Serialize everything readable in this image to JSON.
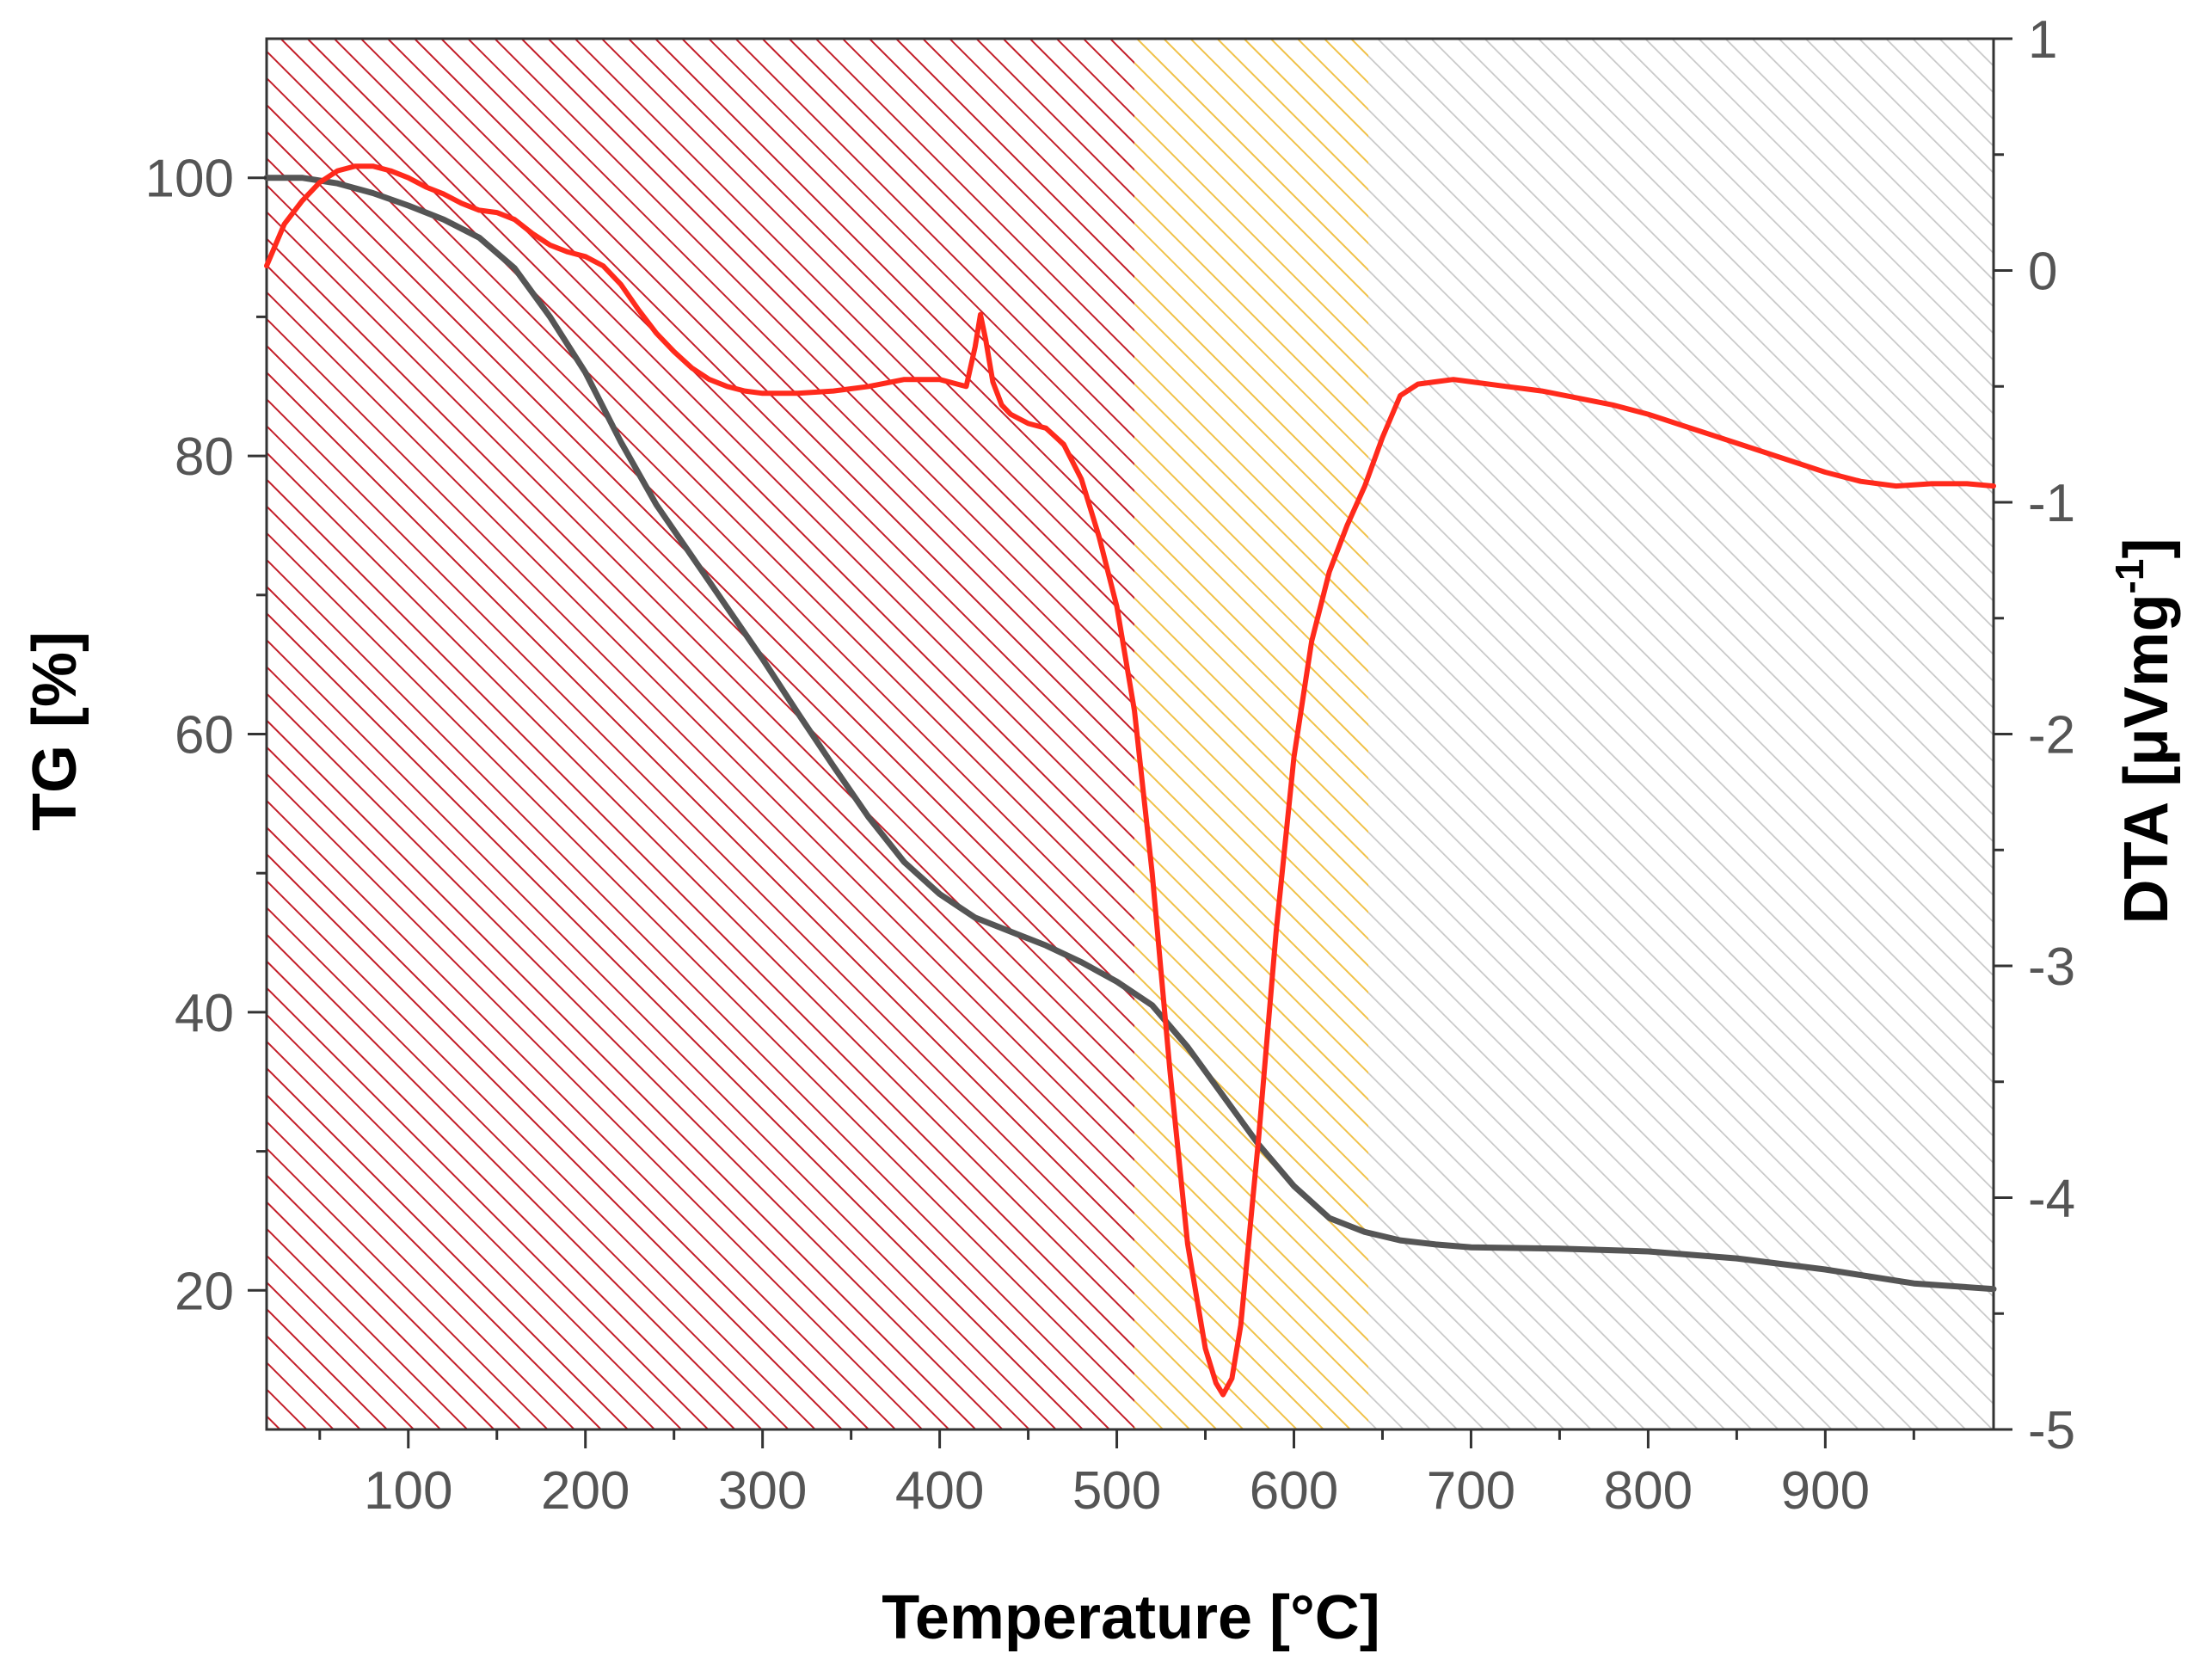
{
  "chart_data": {
    "type": "line",
    "xlabel": "Temperature [°C]",
    "ylabel_left": "TG [%]",
    "ylabel_right_main": "DTA [μVmg",
    "ylabel_right_sup": "-1",
    "ylabel_right_close": "]",
    "xlim": [
      20,
      995
    ],
    "ylim_left": [
      10,
      110
    ],
    "ylim_right": [
      -5,
      1
    ],
    "x_ticks": [
      100,
      200,
      300,
      400,
      500,
      600,
      700,
      800,
      900
    ],
    "x_tick_labels": [
      "100",
      "200",
      "300",
      "400",
      "500",
      "600",
      "700",
      "800",
      "900"
    ],
    "y_left_ticks": [
      20,
      40,
      60,
      80,
      100
    ],
    "y_left_tick_labels": [
      "20",
      "40",
      "60",
      "80",
      "100"
    ],
    "y_right_ticks": [
      -5,
      -4,
      -3,
      -2,
      -1,
      0,
      1
    ],
    "y_right_tick_labels": [
      "-5",
      "-4",
      "-3",
      "-2",
      "-1",
      "0",
      "1"
    ],
    "regions": [
      {
        "name": "region-1",
        "from": 20,
        "to": 510,
        "color": "#c41f2a",
        "pattern": "hatch"
      },
      {
        "name": "region-2",
        "from": 510,
        "to": 642,
        "color": "#f0c24a",
        "pattern": "hatch"
      },
      {
        "name": "region-3",
        "from": 642,
        "to": 995,
        "color": "#c8c8c8",
        "pattern": "hatch"
      }
    ],
    "series": [
      {
        "name": "TG",
        "axis": "left",
        "color": "#555555",
        "x": [
          20,
          40,
          60,
          80,
          100,
          120,
          140,
          160,
          180,
          200,
          220,
          240,
          260,
          280,
          300,
          320,
          340,
          360,
          380,
          400,
          420,
          440,
          460,
          480,
          500,
          520,
          540,
          560,
          580,
          600,
          620,
          640,
          660,
          680,
          700,
          750,
          800,
          850,
          900,
          950,
          995
        ],
        "y": [
          100,
          100,
          99.6,
          98.9,
          98,
          97,
          95.7,
          93.5,
          90,
          86,
          81,
          76.5,
          72.8,
          69.1,
          65.4,
          61.5,
          57.7,
          54,
          50.8,
          48.5,
          46.8,
          45.8,
          44.8,
          43.6,
          42.2,
          40.5,
          37.5,
          34,
          30.5,
          27.5,
          25.2,
          24.2,
          23.6,
          23.3,
          23.1,
          23,
          22.8,
          22.3,
          21.5,
          20.5,
          20.1
        ]
      },
      {
        "name": "DTA",
        "axis": "right",
        "color": "#ff2a1c",
        "x": [
          20,
          30,
          40,
          50,
          60,
          70,
          80,
          90,
          100,
          110,
          120,
          130,
          140,
          150,
          160,
          170,
          180,
          190,
          200,
          210,
          220,
          230,
          240,
          250,
          260,
          270,
          280,
          290,
          300,
          320,
          340,
          360,
          380,
          400,
          410,
          415,
          420,
          423,
          426,
          430,
          435,
          440,
          450,
          460,
          470,
          480,
          490,
          500,
          510,
          520,
          530,
          540,
          550,
          556,
          560,
          565,
          570,
          580,
          590,
          600,
          610,
          620,
          630,
          640,
          650,
          660,
          670,
          680,
          690,
          700,
          720,
          740,
          760,
          780,
          800,
          820,
          840,
          860,
          880,
          900,
          920,
          940,
          960,
          980,
          995
        ],
        "y": [
          0.02,
          0.2,
          0.3,
          0.38,
          0.43,
          0.45,
          0.45,
          0.43,
          0.4,
          0.36,
          0.33,
          0.29,
          0.26,
          0.25,
          0.22,
          0.16,
          0.11,
          0.08,
          0.06,
          0.02,
          -0.06,
          -0.17,
          -0.27,
          -0.35,
          -0.42,
          -0.47,
          -0.5,
          -0.52,
          -0.53,
          -0.53,
          -0.52,
          -0.5,
          -0.47,
          -0.47,
          -0.49,
          -0.5,
          -0.33,
          -0.19,
          -0.3,
          -0.48,
          -0.58,
          -0.62,
          -0.66,
          -0.68,
          -0.75,
          -0.9,
          -1.15,
          -1.45,
          -1.9,
          -2.6,
          -3.45,
          -4.2,
          -4.65,
          -4.8,
          -4.85,
          -4.78,
          -4.55,
          -3.75,
          -2.85,
          -2.1,
          -1.6,
          -1.3,
          -1.1,
          -0.93,
          -0.72,
          -0.54,
          -0.49,
          -0.48,
          -0.47,
          -0.48,
          -0.5,
          -0.52,
          -0.55,
          -0.58,
          -0.62,
          -0.67,
          -0.72,
          -0.77,
          -0.82,
          -0.87,
          -0.91,
          -0.93,
          -0.92,
          -0.92,
          -0.93
        ]
      }
    ]
  }
}
